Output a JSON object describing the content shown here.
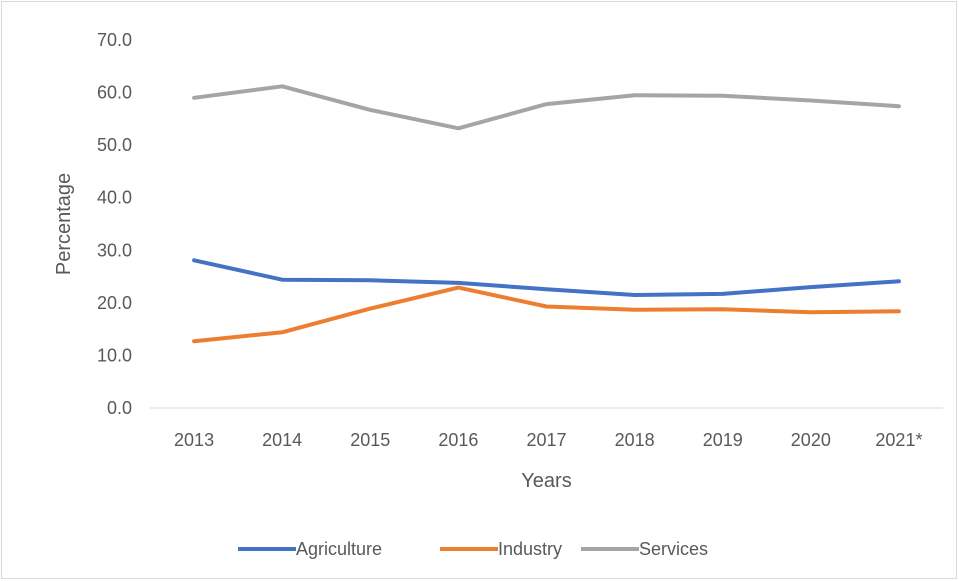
{
  "chart_data": {
    "type": "line",
    "title": "",
    "xlabel": "Years",
    "ylabel": "Percentage",
    "categories": [
      "2013",
      "2014",
      "2015",
      "2016",
      "2017",
      "2018",
      "2019",
      "2020",
      "2021*"
    ],
    "ylim": [
      0,
      70
    ],
    "yticks": [
      "0.0",
      "10.0",
      "20.0",
      "30.0",
      "40.0",
      "50.0",
      "60.0",
      "70.0"
    ],
    "grid": false,
    "legend_position": "bottom",
    "series": [
      {
        "name": "Agriculture",
        "color": "#4472c4",
        "values": [
          28.1,
          24.4,
          24.3,
          23.8,
          22.6,
          21.5,
          21.7,
          23.0,
          24.1
        ]
      },
      {
        "name": "Industry",
        "color": "#ed7d31",
        "values": [
          12.7,
          14.4,
          18.9,
          22.9,
          19.3,
          18.7,
          18.8,
          18.2,
          18.4
        ]
      },
      {
        "name": "Services",
        "color": "#a5a5a5",
        "values": [
          59.0,
          61.2,
          56.7,
          53.2,
          57.8,
          59.5,
          59.4,
          58.5,
          57.4
        ]
      }
    ]
  }
}
